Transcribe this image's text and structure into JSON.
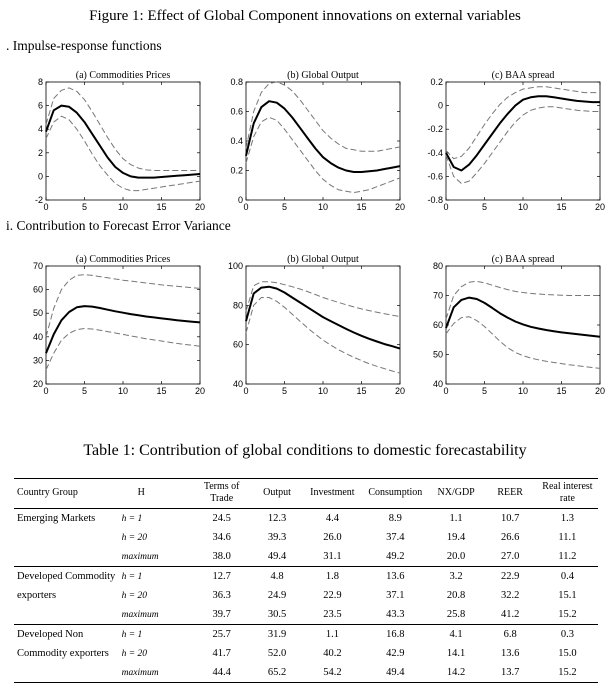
{
  "figure": {
    "title": "Figure 1: Effect of Global Component innovations on external variables",
    "section_a": ". Impulse-response functions",
    "section_b": "i. Contribution to Forecast Error Variance"
  },
  "chart_data": [
    {
      "type": "line",
      "title": "(a) Commodities Prices",
      "x": [
        0,
        1,
        2,
        3,
        4,
        5,
        6,
        7,
        8,
        9,
        10,
        11,
        12,
        13,
        14,
        15,
        16,
        17,
        18,
        19,
        20
      ],
      "xticks": [
        0,
        5,
        10,
        15,
        20
      ],
      "xlim": [
        0,
        20
      ],
      "ylim": [
        -2,
        8
      ],
      "yticks": [
        -2,
        0,
        2,
        4,
        6,
        8
      ],
      "series": [
        {
          "style": "solid",
          "values": [
            3.8,
            5.6,
            6.0,
            5.9,
            5.4,
            4.6,
            3.6,
            2.6,
            1.6,
            0.8,
            0.3,
            0.0,
            -0.1,
            -0.1,
            -0.1,
            -0.05,
            0.0,
            0.05,
            0.1,
            0.15,
            0.2
          ]
        },
        {
          "style": "dashed",
          "values": [
            4.4,
            6.6,
            7.3,
            7.5,
            7.2,
            6.5,
            5.5,
            4.4,
            3.3,
            2.3,
            1.5,
            1.0,
            0.7,
            0.55,
            0.5,
            0.5,
            0.5,
            0.5,
            0.5,
            0.5,
            0.5
          ]
        },
        {
          "style": "dashed",
          "values": [
            3.2,
            4.6,
            5.1,
            4.8,
            4.0,
            3.0,
            1.9,
            0.9,
            0.1,
            -0.6,
            -1.0,
            -1.2,
            -1.2,
            -1.1,
            -1.0,
            -0.9,
            -0.8,
            -0.7,
            -0.6,
            -0.5,
            -0.4
          ]
        }
      ]
    },
    {
      "type": "line",
      "title": "(b) Global Output",
      "x": [
        0,
        1,
        2,
        3,
        4,
        5,
        6,
        7,
        8,
        9,
        10,
        11,
        12,
        13,
        14,
        15,
        16,
        17,
        18,
        19,
        20
      ],
      "xticks": [
        0,
        5,
        10,
        15,
        20
      ],
      "xlim": [
        0,
        20
      ],
      "ylim": [
        0,
        0.8
      ],
      "yticks": [
        0,
        0.2,
        0.4,
        0.6,
        0.8
      ],
      "series": [
        {
          "style": "solid",
          "values": [
            0.3,
            0.52,
            0.63,
            0.67,
            0.66,
            0.62,
            0.56,
            0.49,
            0.42,
            0.35,
            0.29,
            0.25,
            0.22,
            0.2,
            0.19,
            0.19,
            0.195,
            0.2,
            0.21,
            0.22,
            0.23
          ]
        },
        {
          "style": "dashed",
          "values": [
            0.35,
            0.6,
            0.73,
            0.79,
            0.8,
            0.78,
            0.74,
            0.68,
            0.61,
            0.54,
            0.47,
            0.42,
            0.38,
            0.35,
            0.34,
            0.33,
            0.33,
            0.33,
            0.34,
            0.35,
            0.36
          ]
        },
        {
          "style": "dashed",
          "values": [
            0.25,
            0.43,
            0.53,
            0.56,
            0.54,
            0.48,
            0.41,
            0.34,
            0.27,
            0.2,
            0.14,
            0.1,
            0.07,
            0.06,
            0.05,
            0.06,
            0.07,
            0.09,
            0.11,
            0.13,
            0.15
          ]
        }
      ]
    },
    {
      "type": "line",
      "title": "(c) BAA spread",
      "x": [
        0,
        1,
        2,
        3,
        4,
        5,
        6,
        7,
        8,
        9,
        10,
        11,
        12,
        13,
        14,
        15,
        16,
        17,
        18,
        19,
        20
      ],
      "xticks": [
        0,
        5,
        10,
        15,
        20
      ],
      "xlim": [
        0,
        20
      ],
      "ylim": [
        -0.8,
        0.2
      ],
      "yticks": [
        -0.8,
        -0.6,
        -0.4,
        -0.2,
        0,
        0.2
      ],
      "series": [
        {
          "style": "solid",
          "values": [
            -0.4,
            -0.52,
            -0.55,
            -0.5,
            -0.42,
            -0.33,
            -0.24,
            -0.15,
            -0.07,
            0.0,
            0.05,
            0.07,
            0.08,
            0.08,
            0.07,
            0.06,
            0.05,
            0.04,
            0.035,
            0.03,
            0.03
          ]
        },
        {
          "style": "dashed",
          "values": [
            -0.38,
            -0.45,
            -0.43,
            -0.36,
            -0.26,
            -0.16,
            -0.07,
            0.01,
            0.07,
            0.11,
            0.14,
            0.15,
            0.16,
            0.16,
            0.15,
            0.14,
            0.13,
            0.12,
            0.11,
            0.11,
            0.11
          ]
        },
        {
          "style": "dashed",
          "values": [
            -0.42,
            -0.6,
            -0.66,
            -0.64,
            -0.57,
            -0.49,
            -0.4,
            -0.31,
            -0.22,
            -0.14,
            -0.08,
            -0.04,
            -0.02,
            -0.01,
            -0.01,
            -0.02,
            -0.03,
            -0.04,
            -0.045,
            -0.05,
            -0.05
          ]
        }
      ]
    },
    {
      "type": "line",
      "title": "(a) Commodities Prices",
      "x": [
        0,
        1,
        2,
        3,
        4,
        5,
        6,
        7,
        8,
        9,
        10,
        11,
        12,
        13,
        14,
        15,
        16,
        17,
        18,
        19,
        20
      ],
      "xticks": [
        0,
        5,
        10,
        15,
        20
      ],
      "xlim": [
        0,
        20
      ],
      "ylim": [
        20,
        70
      ],
      "yticks": [
        20,
        30,
        40,
        50,
        60,
        70
      ],
      "series": [
        {
          "style": "solid",
          "values": [
            33,
            41,
            47,
            50.5,
            52.5,
            53,
            52.8,
            52.2,
            51.5,
            50.8,
            50.2,
            49.6,
            49.1,
            48.6,
            48.2,
            47.8,
            47.4,
            47.0,
            46.7,
            46.4,
            46.1
          ]
        },
        {
          "style": "dashed",
          "values": [
            40,
            52,
            60,
            64,
            66,
            66.3,
            66,
            65.5,
            65,
            64.5,
            64,
            63.6,
            63.2,
            62.8,
            62.4,
            62,
            61.7,
            61.4,
            61.1,
            60.8,
            60.5
          ]
        },
        {
          "style": "dashed",
          "values": [
            26,
            33,
            38.5,
            41.5,
            43,
            43.5,
            43.3,
            42.8,
            42.2,
            41.6,
            41,
            40.4,
            39.8,
            39.2,
            38.7,
            38.2,
            37.7,
            37.2,
            36.8,
            36.4,
            36
          ]
        }
      ]
    },
    {
      "type": "line",
      "title": "(b) Global Output",
      "x": [
        0,
        1,
        2,
        3,
        4,
        5,
        6,
        7,
        8,
        9,
        10,
        11,
        12,
        13,
        14,
        15,
        16,
        17,
        18,
        19,
        20
      ],
      "xticks": [
        0,
        5,
        10,
        15,
        20
      ],
      "xlim": [
        0,
        20
      ],
      "ylim": [
        40,
        100
      ],
      "yticks": [
        40,
        60,
        80,
        100
      ],
      "series": [
        {
          "style": "solid",
          "values": [
            72,
            86,
            89,
            89.5,
            88.5,
            86.5,
            84,
            81.5,
            79,
            76.5,
            74,
            72,
            70,
            68,
            66.2,
            64.5,
            63,
            61.6,
            60.3,
            59.2,
            58
          ]
        },
        {
          "style": "dashed",
          "values": [
            77,
            90,
            92,
            92,
            91.5,
            90.5,
            89.5,
            88.3,
            87,
            85.5,
            84,
            82.7,
            81.5,
            80.3,
            79.2,
            78.2,
            77.3,
            76.5,
            75.7,
            75,
            74.3
          ]
        },
        {
          "style": "dashed",
          "values": [
            66,
            80,
            84,
            84,
            82,
            79,
            75.5,
            72,
            68.5,
            65.3,
            62.3,
            59.8,
            57.5,
            55.4,
            53.6,
            51.9,
            50.3,
            49,
            47.8,
            46.6,
            45.5
          ]
        }
      ]
    },
    {
      "type": "line",
      "title": "(c) BAA spread",
      "x": [
        0,
        1,
        2,
        3,
        4,
        5,
        6,
        7,
        8,
        9,
        10,
        11,
        12,
        13,
        14,
        15,
        16,
        17,
        18,
        19,
        20
      ],
      "xticks": [
        0,
        5,
        10,
        15,
        20
      ],
      "xlim": [
        0,
        20
      ],
      "ylim": [
        40,
        80
      ],
      "yticks": [
        40,
        50,
        60,
        70,
        80
      ],
      "series": [
        {
          "style": "solid",
          "values": [
            59,
            66,
            68.5,
            69.3,
            68.8,
            67.5,
            65.8,
            64,
            62.5,
            61.2,
            60.2,
            59.4,
            58.8,
            58.3,
            57.9,
            57.5,
            57.2,
            56.9,
            56.6,
            56.3,
            56
          ]
        },
        {
          "style": "dashed",
          "values": [
            62,
            70,
            73,
            74.5,
            74.8,
            74.3,
            73.5,
            72.7,
            72,
            71.4,
            71,
            70.7,
            70.5,
            70.3,
            70.2,
            70.1,
            70,
            70,
            70,
            70,
            70
          ]
        },
        {
          "style": "dashed",
          "values": [
            57,
            60.5,
            62.5,
            62.8,
            61.5,
            59.5,
            57,
            54.5,
            52.3,
            50.7,
            49.6,
            48.8,
            48.2,
            47.7,
            47.3,
            46.9,
            46.5,
            46.2,
            45.9,
            45.6,
            45.3
          ]
        }
      ]
    }
  ],
  "table": {
    "title": "Table 1: Contribution of global conditions to domestic forecastability",
    "headers": {
      "group": "Country Group",
      "h": "H",
      "tot_1": "Terms of",
      "tot_2": "Trade",
      "output": "Output",
      "investment": "Investment",
      "consumption": "Consumption",
      "nxgdp": "NX/GDP",
      "reer": "REER",
      "rir_1": "Real interest",
      "rir_2": "rate"
    },
    "groups": [
      {
        "name_1": "Emerging Markets",
        "name_2": "",
        "name_3": "",
        "rows": [
          {
            "h": "h = 1",
            "values": [
              "24.5",
              "12.3",
              "4.4",
              "8.9",
              "1.1",
              "10.7",
              "1.3"
            ]
          },
          {
            "h": "h = 20",
            "values": [
              "34.6",
              "39.3",
              "26.0",
              "37.4",
              "19.4",
              "26.6",
              "11.1"
            ]
          },
          {
            "h": "maximum",
            "values": [
              "38.0",
              "49.4",
              "31.1",
              "49.2",
              "20.0",
              "27.0",
              "11.2"
            ]
          }
        ]
      },
      {
        "name_1": "Developed Commodity",
        "name_2": "exporters",
        "name_3": "",
        "rows": [
          {
            "h": "h = 1",
            "values": [
              "12.7",
              "4.8",
              "1.8",
              "13.6",
              "3.2",
              "22.9",
              "0.4"
            ]
          },
          {
            "h": "h = 20",
            "values": [
              "36.3",
              "24.9",
              "22.9",
              "37.1",
              "20.8",
              "32.2",
              "15.1"
            ]
          },
          {
            "h": "maximum",
            "values": [
              "39.7",
              "30.5",
              "23.5",
              "43.3",
              "25.8",
              "41.2",
              "15.2"
            ]
          }
        ]
      },
      {
        "name_1": "Developed Non",
        "name_2": "Commodity exporters",
        "name_3": "",
        "rows": [
          {
            "h": "h = 1",
            "values": [
              "25.7",
              "31.9",
              "1.1",
              "16.8",
              "4.1",
              "6.8",
              "0.3"
            ]
          },
          {
            "h": "h = 20",
            "values": [
              "41.7",
              "52.0",
              "40.2",
              "42.9",
              "14.1",
              "13.6",
              "15.0"
            ]
          },
          {
            "h": "maximum",
            "values": [
              "44.4",
              "65.2",
              "54.2",
              "49.4",
              "14.2",
              "13.7",
              "15.2"
            ]
          }
        ]
      }
    ]
  }
}
